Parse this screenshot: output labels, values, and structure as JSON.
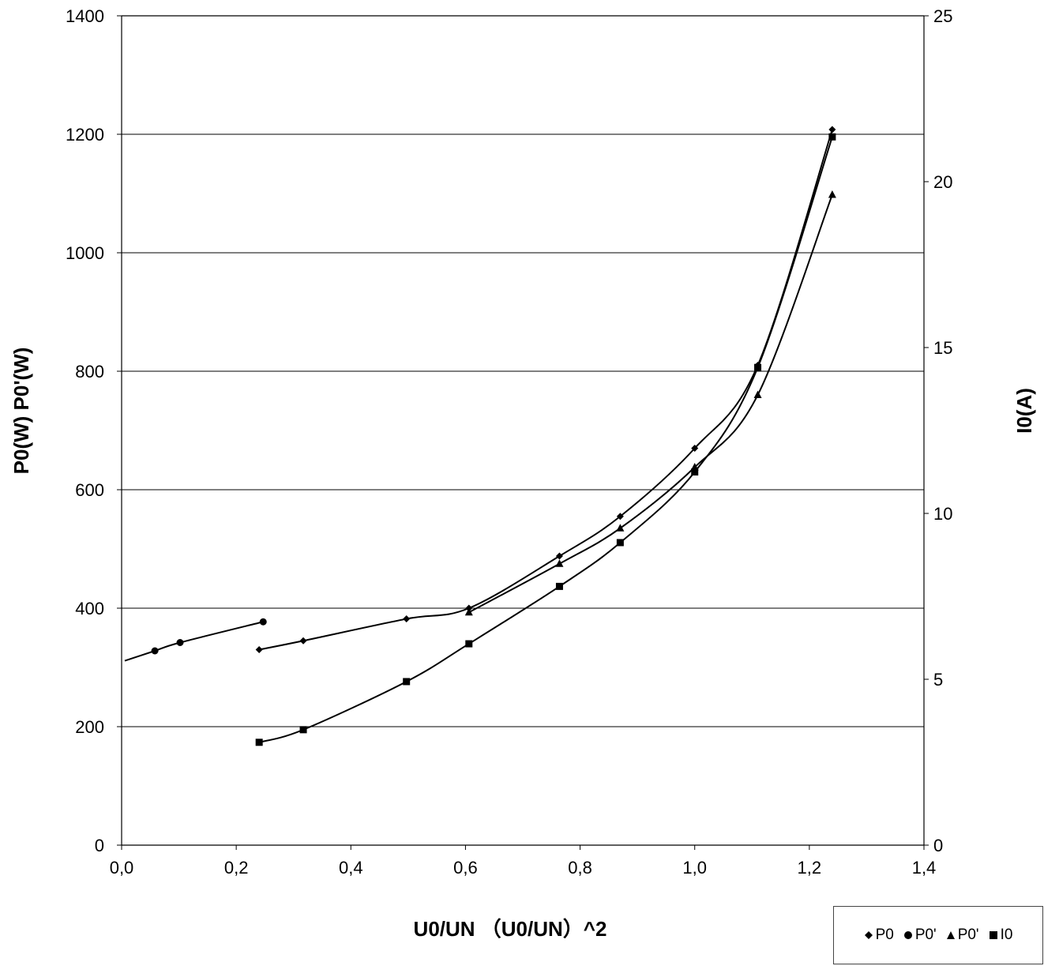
{
  "chart_data": {
    "type": "line",
    "xlabel": "U0/UN （U0/UN）^2",
    "ylabel": "P0(W)  P0'(W)",
    "y2label": "I0(A)",
    "xlim": [
      0,
      1.4
    ],
    "ylim": [
      0,
      1400
    ],
    "y2lim": [
      0,
      25
    ],
    "x_ticks": [
      "0,0",
      "0,2",
      "0,4",
      "0,6",
      "0,8",
      "1,0",
      "1,2",
      "1,4"
    ],
    "y_ticks": [
      "0",
      "200",
      "400",
      "600",
      "800",
      "1000",
      "1200",
      "1400"
    ],
    "y2_ticks": [
      "0",
      "5",
      "10",
      "15",
      "20",
      "25"
    ],
    "grid": "horizontal",
    "legend_position": "bottom-right",
    "series": [
      {
        "name": "P0",
        "marker": "diamond",
        "axis": "left",
        "x": [
          0.24,
          0.317,
          0.497,
          0.606,
          0.764,
          0.87,
          1.0,
          1.11,
          1.24
        ],
        "y": [
          330,
          345,
          382,
          400,
          488,
          555,
          670,
          810,
          1208
        ]
      },
      {
        "name": "P0'",
        "marker": "circle",
        "axis": "left",
        "x": [
          0.058,
          0.102,
          0.247
        ],
        "y": [
          328,
          342,
          377
        ]
      },
      {
        "name": "P0'",
        "marker": "triangle",
        "axis": "left",
        "x": [
          0.606,
          0.764,
          0.87,
          1.0,
          1.11,
          1.24
        ],
        "y": [
          393,
          475,
          535,
          638,
          760,
          1098
        ]
      },
      {
        "name": "I0",
        "marker": "square",
        "axis": "right",
        "x": [
          0.24,
          0.317,
          0.497,
          0.606,
          0.764,
          0.87,
          1.0,
          1.11,
          1.24
        ],
        "y": [
          3.1,
          3.48,
          4.93,
          6.07,
          7.8,
          9.12,
          11.25,
          14.4,
          21.35
        ]
      }
    ]
  }
}
